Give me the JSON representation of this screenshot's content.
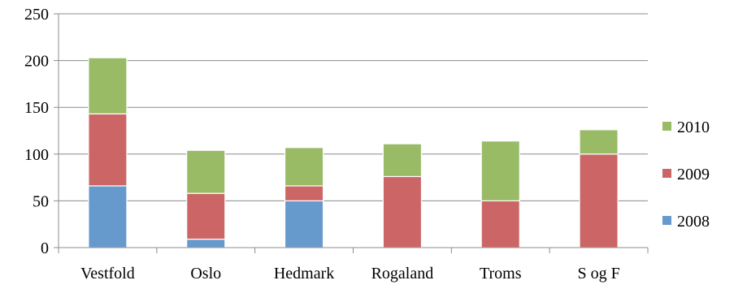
{
  "chart_data": {
    "type": "bar",
    "stacked": true,
    "categories": [
      "Vestfold",
      "Oslo",
      "Hedmark",
      "Rogaland",
      "Troms",
      "S og F"
    ],
    "series": [
      {
        "name": "2008",
        "color": "#6699cc",
        "values": [
          66,
          9,
          50,
          0,
          0,
          0
        ]
      },
      {
        "name": "2009",
        "color": "#cc6666",
        "values": [
          77,
          49,
          16,
          76,
          50,
          100
        ]
      },
      {
        "name": "2010",
        "color": "#99bb66",
        "values": [
          60,
          46,
          41,
          35,
          64,
          26
        ]
      }
    ],
    "ylim": [
      0,
      250
    ],
    "yticks": [
      0,
      50,
      100,
      150,
      200,
      250
    ],
    "grid": true,
    "legend": "right",
    "title": "",
    "xlabel": "",
    "ylabel": ""
  }
}
